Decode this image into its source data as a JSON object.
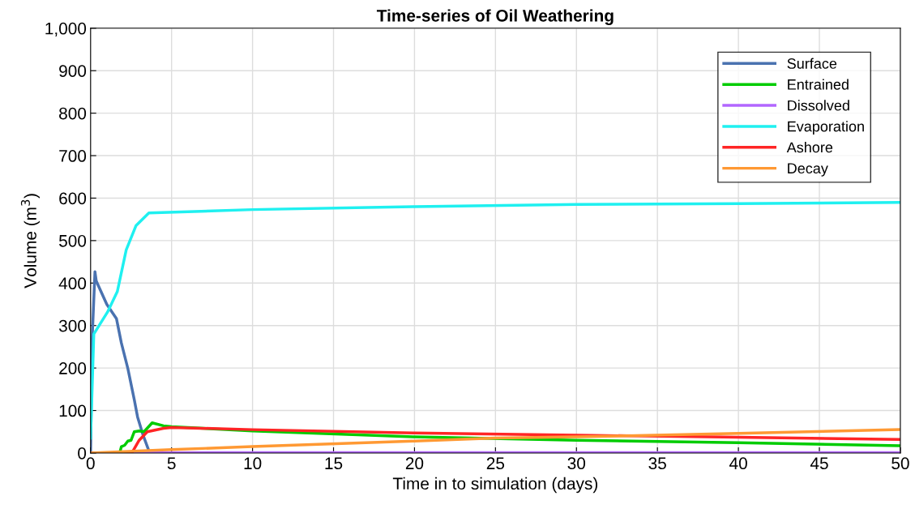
{
  "chart_data": {
    "type": "line",
    "title": "Time-series of Oil Weathering",
    "xlabel": "Time in to simulation (days)",
    "ylabel": "Volume (m$^{3}$)",
    "xlim": [
      0,
      50
    ],
    "xticks": [
      0,
      5,
      10,
      15,
      20,
      25,
      30,
      35,
      40,
      45,
      50
    ],
    "ylim": [
      0,
      1000
    ],
    "yticks": [
      0,
      100,
      200,
      300,
      400,
      500,
      600,
      700,
      800,
      900,
      {
        "value": 1000,
        "label": "1,000"
      }
    ],
    "grid": true,
    "legend": "top right",
    "marker": "none",
    "line_style": "solid",
    "series": [
      {
        "name": "Surface",
        "color": "#4a72b0",
        "x": [
          0,
          0.1,
          0.27,
          0.35,
          1,
          1.6,
          1.9,
          2.3,
          2.7,
          2.9,
          3.25,
          3.65
        ],
        "values": [
          0,
          270,
          427,
          405,
          350,
          316,
          259,
          199,
          125,
          85,
          41,
          0
        ]
      },
      {
        "name": "Entrained",
        "color": "#00cc00",
        "x": [
          0,
          1.8,
          1.9,
          2.1,
          2.3,
          2.5,
          2.7,
          3.0,
          3.3,
          3.8,
          4.5,
          5,
          10,
          20,
          30,
          40,
          50
        ],
        "values": [
          0,
          0,
          15,
          18,
          28,
          30,
          50,
          52,
          50,
          71,
          64,
          62,
          52,
          38,
          30,
          24,
          17
        ]
      },
      {
        "name": "Dissolved",
        "color": "#b266ff",
        "x": [
          0,
          10,
          20,
          30,
          40,
          50
        ],
        "values": [
          0,
          1,
          1,
          1,
          1,
          1
        ]
      },
      {
        "name": "Evaporation",
        "color": "#1ff0f0",
        "x": [
          0,
          0.2,
          1.05,
          1.65,
          2.2,
          2.8,
          3.6,
          10,
          20,
          30,
          40,
          50
        ],
        "values": [
          35,
          280,
          332,
          380,
          478,
          535,
          565,
          573,
          580,
          585,
          587,
          590
        ]
      },
      {
        "name": "Ashore",
        "color": "#ff2525",
        "x": [
          0,
          2.55,
          3,
          3.5,
          4.5,
          5,
          10,
          20,
          30,
          40,
          50
        ],
        "values": [
          0,
          0,
          30,
          50,
          58,
          60,
          55,
          47,
          42,
          37,
          32
        ]
      },
      {
        "name": "Decay",
        "color": "#ff9933",
        "x": [
          0,
          5,
          10,
          20,
          25,
          30,
          40,
          50
        ],
        "values": [
          0,
          8,
          15,
          28,
          35,
          38,
          46,
          55
        ]
      }
    ]
  }
}
